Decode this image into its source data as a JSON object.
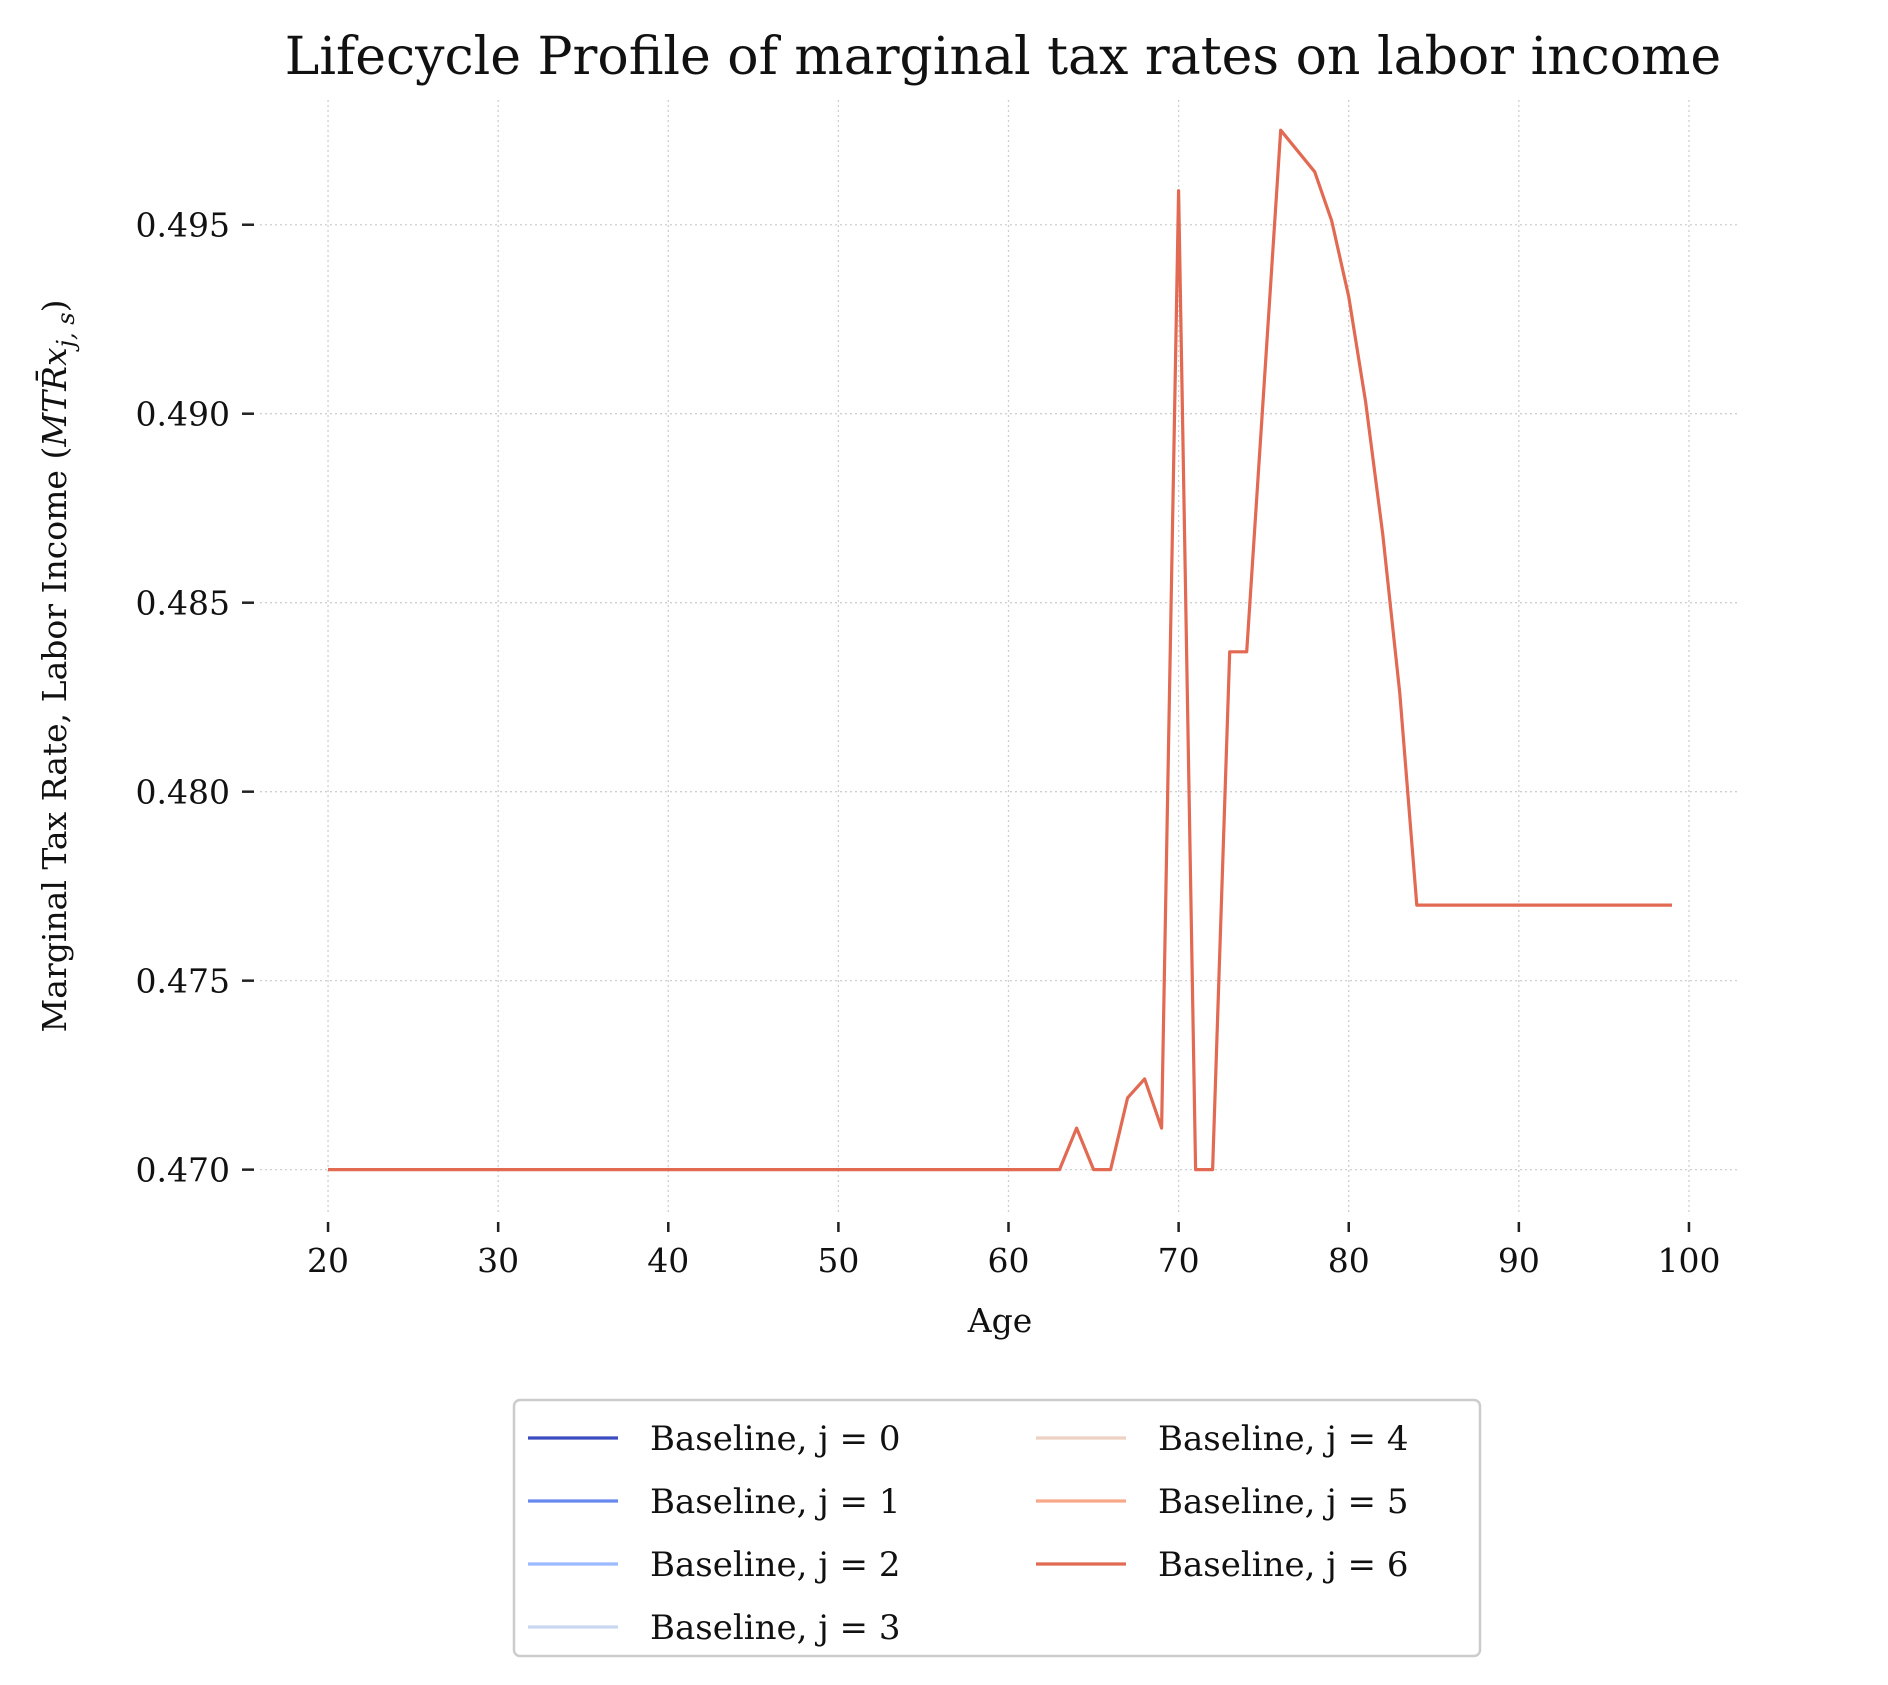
{
  "chart_data": {
    "type": "line",
    "title": "Lifecycle Profile of marginal tax rates on labor income",
    "xlabel": "Age",
    "ylabel_main": "Marginal Tax Rate, Labor Income (",
    "ylabel_math": "MTR̄x",
    "ylabel_sub": "j, s",
    "ylabel_close": ")",
    "xlim": [
      16,
      103
    ],
    "ylim": [
      0.4688,
      0.4983
    ],
    "xticks": [
      20,
      30,
      40,
      50,
      60,
      70,
      80,
      90,
      100
    ],
    "yticks": [
      0.47,
      0.475,
      0.48,
      0.485,
      0.49,
      0.495
    ],
    "ytick_labels": [
      "0.470",
      "0.475",
      "0.480",
      "0.485",
      "0.490",
      "0.495"
    ],
    "grid": true,
    "legend_placement": "below",
    "series": [
      {
        "name": "Baseline, j = 0",
        "color": "#3b4cc0",
        "opacity": 1.0,
        "values": []
      },
      {
        "name": "Baseline, j = 1",
        "color": "#6788ee",
        "opacity": 1.0,
        "values": []
      },
      {
        "name": "Baseline, j = 2",
        "color": "#9abbff",
        "opacity": 1.0,
        "values": []
      },
      {
        "name": "Baseline, j = 3",
        "color": "#c9d7f0",
        "opacity": 1.0,
        "values": []
      },
      {
        "name": "Baseline, j = 4",
        "color": "#edd1c2",
        "opacity": 1.0,
        "values": []
      },
      {
        "name": "Baseline, j = 5",
        "color": "#f7a889",
        "opacity": 1.0,
        "values": []
      },
      {
        "name": "Baseline, j = 6",
        "color": "#e26952",
        "opacity": 1.0,
        "values": [
          [
            20,
            0.47
          ],
          [
            63,
            0.47
          ],
          [
            64,
            0.4711
          ],
          [
            65,
            0.47
          ],
          [
            66,
            0.47
          ],
          [
            67,
            0.4719
          ],
          [
            68,
            0.4724
          ],
          [
            69,
            0.4711
          ],
          [
            70,
            0.4959
          ],
          [
            71,
            0.47
          ],
          [
            72,
            0.47
          ],
          [
            73,
            0.4837
          ],
          [
            74,
            0.4837
          ],
          [
            76,
            0.4975
          ],
          [
            78,
            0.4964
          ],
          [
            79,
            0.4951
          ],
          [
            80,
            0.4931
          ],
          [
            81,
            0.4903
          ],
          [
            82,
            0.4868
          ],
          [
            83,
            0.4826
          ],
          [
            84,
            0.477
          ],
          [
            99,
            0.477
          ]
        ]
      }
    ]
  }
}
